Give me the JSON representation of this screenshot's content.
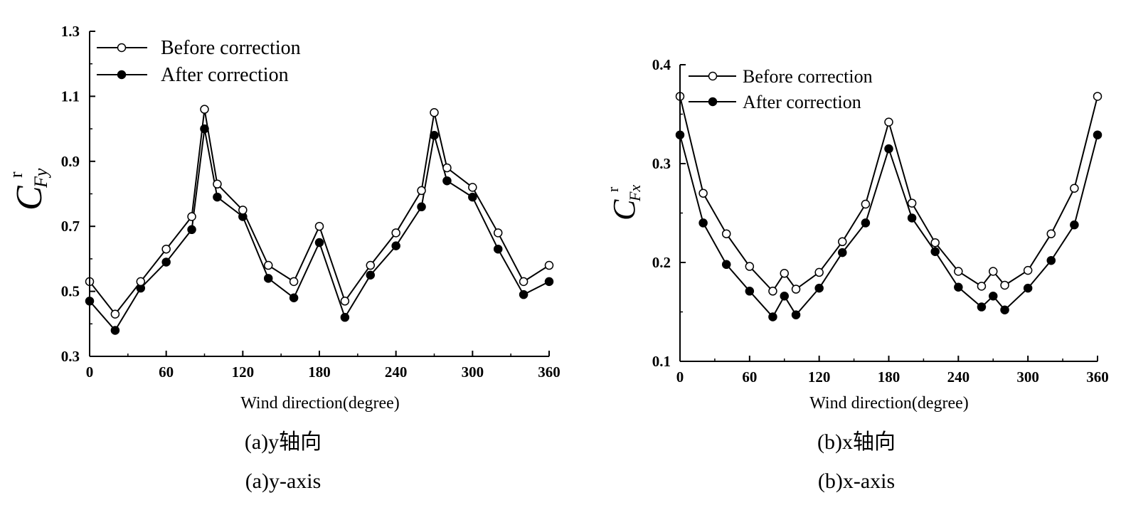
{
  "chart_data": [
    {
      "type": "line",
      "caption_cn": "(a)y轴向",
      "caption_en": "(a)y-axis",
      "xlabel": "Wind direction(degree)",
      "ylabel_main": "C",
      "ylabel_sup": "r",
      "ylabel_sub": "Fy",
      "xlim": [
        0,
        360
      ],
      "ylim": [
        0.3,
        1.3
      ],
      "xticks": [
        "0",
        "60",
        "120",
        "180",
        "240",
        "300",
        "360"
      ],
      "yticks": [
        "0.3",
        "0.5",
        "0.7",
        "0.9",
        "1.1",
        "1.3"
      ],
      "legend_position": "top-left",
      "x": [
        0,
        20,
        40,
        60,
        80,
        90,
        100,
        120,
        140,
        160,
        180,
        200,
        220,
        240,
        260,
        270,
        280,
        300,
        320,
        340,
        360
      ],
      "series": [
        {
          "name": "Before correction",
          "marker": "open-circle",
          "values": [
            0.53,
            0.43,
            0.53,
            0.63,
            0.73,
            1.06,
            0.83,
            0.75,
            0.58,
            0.53,
            0.7,
            0.47,
            0.58,
            0.68,
            0.81,
            1.05,
            0.88,
            0.82,
            0.68,
            0.53,
            0.58
          ]
        },
        {
          "name": "After correction",
          "marker": "filled-circle",
          "values": [
            0.47,
            0.38,
            0.51,
            0.59,
            0.69,
            1.0,
            0.79,
            0.73,
            0.54,
            0.48,
            0.65,
            0.42,
            0.55,
            0.64,
            0.76,
            0.98,
            0.84,
            0.79,
            0.63,
            0.49,
            0.53
          ]
        }
      ]
    },
    {
      "type": "line",
      "caption_cn": "(b)x轴向",
      "caption_en": "(b)x-axis",
      "xlabel": "Wind direction(degree)",
      "ylabel_main": "C",
      "ylabel_sup": "r",
      "ylabel_sub": "Fx",
      "xlim": [
        0,
        360
      ],
      "ylim": [
        0.1,
        0.4
      ],
      "xticks": [
        "0",
        "60",
        "120",
        "180",
        "240",
        "300",
        "360"
      ],
      "yticks": [
        "0.1",
        "0.2",
        "0.3",
        "0.4"
      ],
      "legend_position": "top-left",
      "x": [
        0,
        20,
        40,
        60,
        80,
        90,
        100,
        120,
        140,
        160,
        180,
        200,
        220,
        240,
        260,
        270,
        280,
        300,
        320,
        340,
        360
      ],
      "series": [
        {
          "name": "Before correction",
          "marker": "open-circle",
          "values": [
            0.368,
            0.27,
            0.229,
            0.196,
            0.171,
            0.189,
            0.173,
            0.19,
            0.221,
            0.259,
            0.342,
            0.26,
            0.22,
            0.191,
            0.176,
            0.191,
            0.177,
            0.192,
            0.229,
            0.275,
            0.368
          ]
        },
        {
          "name": "After correction",
          "marker": "filled-circle",
          "values": [
            0.329,
            0.24,
            0.198,
            0.171,
            0.145,
            0.166,
            0.147,
            0.174,
            0.21,
            0.24,
            0.315,
            0.245,
            0.211,
            0.175,
            0.155,
            0.166,
            0.152,
            0.174,
            0.202,
            0.238,
            0.329
          ]
        }
      ]
    }
  ]
}
